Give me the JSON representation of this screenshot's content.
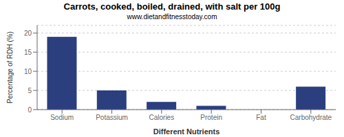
{
  "chart_data": {
    "type": "bar",
    "title": "Carrots, cooked, boiled, drained, with salt per 100g",
    "subtitle": "www.dietandfitnesstoday.com",
    "xlabel": "Different Nutrients",
    "ylabel": "Percentage of RDH (%)",
    "categories": [
      "Sodium",
      "Potassium",
      "Calories",
      "Protein",
      "Fat",
      "Carbohydrate"
    ],
    "values": [
      19,
      5,
      2,
      1,
      0,
      6
    ],
    "color": "#2b3f7e",
    "ylim": [
      0,
      22
    ],
    "yticks": [
      0,
      5,
      10,
      15,
      20
    ],
    "grid": true
  }
}
